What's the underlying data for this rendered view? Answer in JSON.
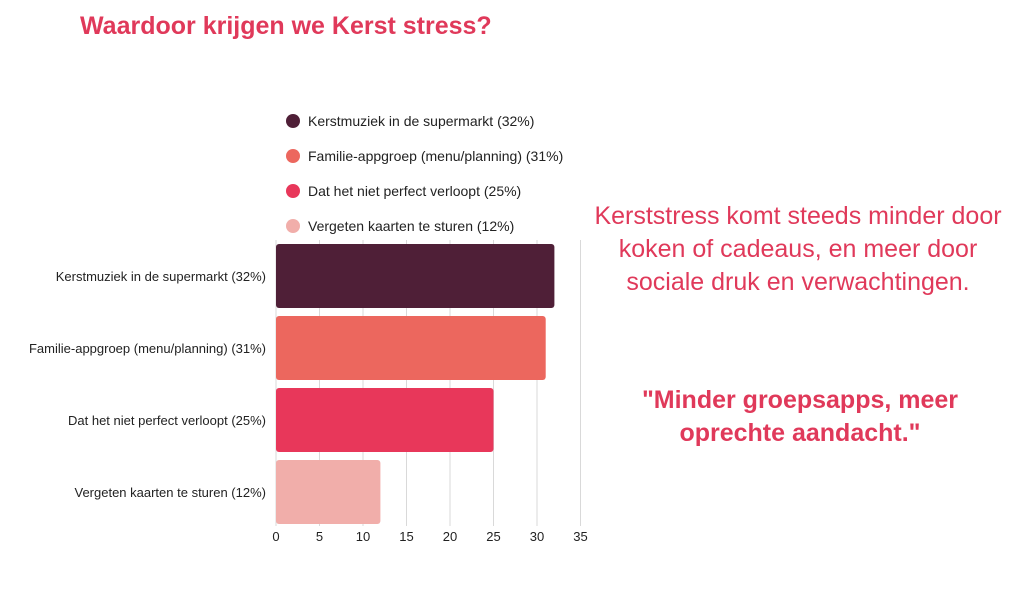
{
  "title": "Waardoor krijgen we Kerst stress?",
  "commentary": "Kerststress komt steeds minder door koken of cadeaus, en meer door sociale druk en verwachtingen.",
  "quote": "\"Minder groepsapps, meer oprechte aandacht.\"",
  "legend": [
    {
      "label": "Kerstmuziek in de supermarkt (32%)",
      "color": "#4f1f37"
    },
    {
      "label": "Familie-appgroep (menu/planning) (31%)",
      "color": "#ec675e"
    },
    {
      "label": "Dat het niet perfect verloopt (25%)",
      "color": "#e8375a"
    },
    {
      "label": "Vergeten kaarten te sturen (12%)",
      "color": "#f1aeaa"
    }
  ],
  "chart_data": {
    "type": "bar",
    "orientation": "horizontal",
    "title": "Waardoor krijgen we Kerst stress?",
    "categories": [
      "Kerstmuziek in de supermarkt (32%)",
      "Familie-appgroep (menu/planning) (31%)",
      "Dat het niet perfect verloopt (25%)",
      "Vergeten kaarten te sturen (12%)"
    ],
    "values": [
      32,
      31,
      25,
      12
    ],
    "colors": [
      "#4f1f37",
      "#ec675e",
      "#e8375a",
      "#f1aeaa"
    ],
    "xlim": [
      0,
      35
    ],
    "xticks": [
      "0",
      "5",
      "10",
      "15",
      "20",
      "25",
      "30",
      "35"
    ],
    "grid": true,
    "legend_position": "top"
  }
}
